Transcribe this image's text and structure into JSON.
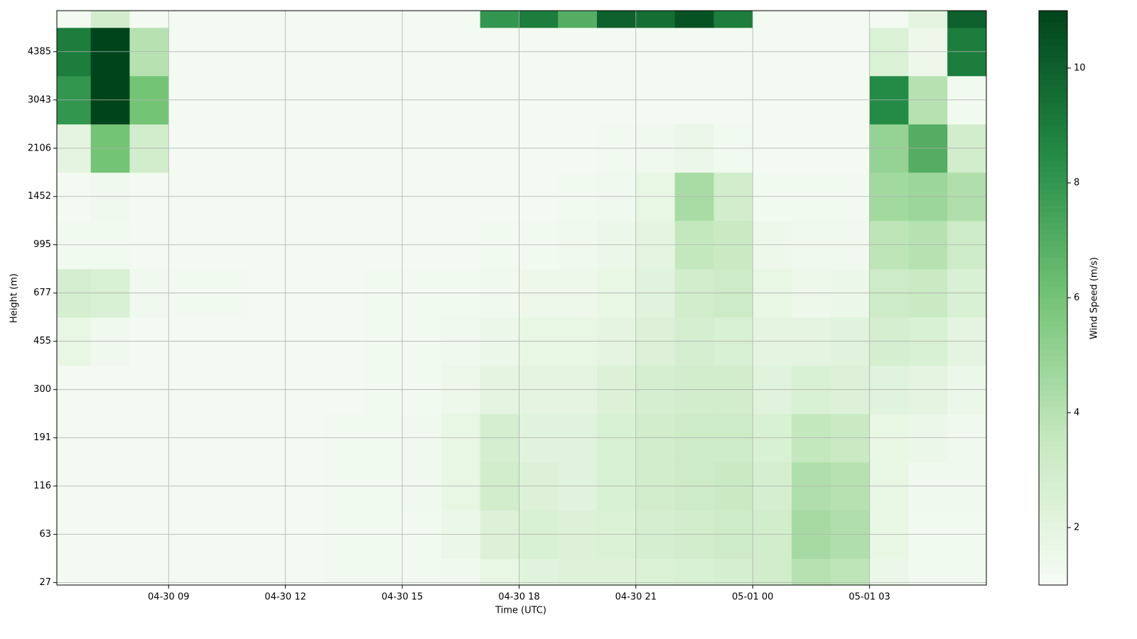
{
  "chart_data": {
    "type": "heatmap",
    "xlabel": "Time (UTC)",
    "ylabel": "Height (m)",
    "colorbar_label": "Wind Speed (m/s)",
    "xlim": [
      6.13,
      30.0
    ],
    "xticks": [
      {
        "value": 9,
        "label": "04-30 09"
      },
      {
        "value": 12,
        "label": "04-30 12"
      },
      {
        "value": 15,
        "label": "04-30 15"
      },
      {
        "value": 18,
        "label": "04-30 18"
      },
      {
        "value": 21,
        "label": "04-30 21"
      },
      {
        "value": 24,
        "label": "05-01 00"
      },
      {
        "value": 27,
        "label": "05-01 03"
      }
    ],
    "ylim": [
      -0.05,
      11.85
    ],
    "yticks": [
      {
        "value": 0,
        "label": "27"
      },
      {
        "value": 1,
        "label": "63"
      },
      {
        "value": 2,
        "label": "116"
      },
      {
        "value": 3,
        "label": "191"
      },
      {
        "value": 4,
        "label": "300"
      },
      {
        "value": 5,
        "label": "455"
      },
      {
        "value": 6,
        "label": "677"
      },
      {
        "value": 7,
        "label": "995"
      },
      {
        "value": 8,
        "label": "1452"
      },
      {
        "value": 9,
        "label": "2106"
      },
      {
        "value": 10,
        "label": "3043"
      },
      {
        "value": 11,
        "label": "4385"
      }
    ],
    "x_edges": [
      6,
      7,
      8,
      9,
      10,
      11,
      12,
      13,
      14,
      15,
      16,
      17,
      18,
      19,
      20,
      21,
      22,
      23,
      24,
      25,
      26,
      27,
      28,
      29,
      30
    ],
    "y_edges": [
      -0.5,
      0.5,
      1.5,
      2.5,
      3.5,
      4.5,
      5.5,
      6.5,
      7.5,
      8.5,
      9.5,
      10.5,
      11.5,
      12.5
    ],
    "clim": [
      1,
      11
    ],
    "cticks": [
      2,
      4,
      6,
      8,
      10
    ],
    "colormap": [
      "#f7fcf5",
      "#c7e9c0",
      "#74c476",
      "#238b45",
      "#00441b"
    ],
    "grid": true,
    "z": [
      [
        1.2,
        1.2,
        1.2,
        1.2,
        1.2,
        1.2,
        1.2,
        1.3,
        1.3,
        1.3,
        1.4,
        1.8,
        2.2,
        2.3,
        2.3,
        2.5,
        2.6,
        2.8,
        3.0,
        4.0,
        3.8,
        1.6,
        1.3,
        1.3
      ],
      [
        1.2,
        1.2,
        1.2,
        1.2,
        1.2,
        1.2,
        1.2,
        1.3,
        1.3,
        1.3,
        1.6,
        2.4,
        2.6,
        2.4,
        2.5,
        2.8,
        3.0,
        3.2,
        3.0,
        4.5,
        4.2,
        1.8,
        1.3,
        1.3
      ],
      [
        1.2,
        1.2,
        1.2,
        1.2,
        1.2,
        1.2,
        1.2,
        1.3,
        1.3,
        1.4,
        1.8,
        3.0,
        2.4,
        2.2,
        2.6,
        3.0,
        3.2,
        3.4,
        2.8,
        4.2,
        4.0,
        1.8,
        1.4,
        1.4
      ],
      [
        1.2,
        1.2,
        1.2,
        1.2,
        1.2,
        1.2,
        1.2,
        1.3,
        1.3,
        1.4,
        1.8,
        2.8,
        2.2,
        2.2,
        2.6,
        3.0,
        3.2,
        3.2,
        2.6,
        3.6,
        3.4,
        1.8,
        1.6,
        1.4
      ],
      [
        1.2,
        1.2,
        1.2,
        1.2,
        1.2,
        1.2,
        1.2,
        1.2,
        1.3,
        1.3,
        1.5,
        2.0,
        2.0,
        2.0,
        2.4,
        2.8,
        3.0,
        3.0,
        2.2,
        2.6,
        2.4,
        2.2,
        2.0,
        1.6
      ],
      [
        1.8,
        1.4,
        1.2,
        1.2,
        1.2,
        1.2,
        1.2,
        1.2,
        1.3,
        1.3,
        1.4,
        1.6,
        1.8,
        1.8,
        2.0,
        2.4,
        2.8,
        2.6,
        2.0,
        2.0,
        2.2,
        2.8,
        2.6,
        2.0
      ],
      [
        2.8,
        2.6,
        1.4,
        1.3,
        1.3,
        1.2,
        1.2,
        1.2,
        1.3,
        1.3,
        1.3,
        1.4,
        1.5,
        1.5,
        1.8,
        2.2,
        3.0,
        3.2,
        1.8,
        1.5,
        1.6,
        3.2,
        3.4,
        2.6
      ],
      [
        1.3,
        1.3,
        1.2,
        1.2,
        1.2,
        1.2,
        1.2,
        1.2,
        1.2,
        1.2,
        1.2,
        1.3,
        1.3,
        1.4,
        1.6,
        2.0,
        3.6,
        3.4,
        1.5,
        1.4,
        1.4,
        3.8,
        4.0,
        3.2
      ],
      [
        1.2,
        1.4,
        1.2,
        1.2,
        1.2,
        1.2,
        1.2,
        1.2,
        1.2,
        1.2,
        1.2,
        1.2,
        1.2,
        1.3,
        1.4,
        1.8,
        4.4,
        3.0,
        1.3,
        1.3,
        1.3,
        4.6,
        4.8,
        4.2
      ],
      [
        2.0,
        6.0,
        3.0,
        1.2,
        1.2,
        1.2,
        1.2,
        1.2,
        1.2,
        1.2,
        1.2,
        1.2,
        1.2,
        1.2,
        1.3,
        1.4,
        1.6,
        1.3,
        1.2,
        1.2,
        1.2,
        5.0,
        7.0,
        3.0
      ],
      [
        8.0,
        11,
        6.0,
        1.2,
        1.2,
        1.2,
        1.2,
        1.2,
        1.2,
        1.2,
        1.2,
        1.2,
        1.2,
        1.2,
        1.2,
        1.2,
        1.2,
        1.2,
        1.2,
        1.2,
        1.2,
        8.5,
        4.0,
        1.3
      ],
      [
        9.0,
        11,
        4.0,
        1.2,
        1.2,
        1.2,
        1.2,
        1.2,
        1.2,
        1.2,
        1.2,
        1.2,
        1.2,
        1.2,
        1.2,
        1.2,
        1.2,
        1.2,
        1.2,
        1.2,
        1.2,
        2.5,
        1.5,
        9.0
      ],
      [
        1.2,
        3.0,
        1.2,
        1.2,
        1.2,
        1.2,
        1.2,
        1.2,
        1.2,
        1.2,
        1.2,
        8.0,
        9.0,
        7.0,
        10.0,
        9.5,
        10.5,
        9.0,
        1.2,
        1.2,
        1.2,
        1.2,
        2.0,
        10.0
      ]
    ]
  }
}
